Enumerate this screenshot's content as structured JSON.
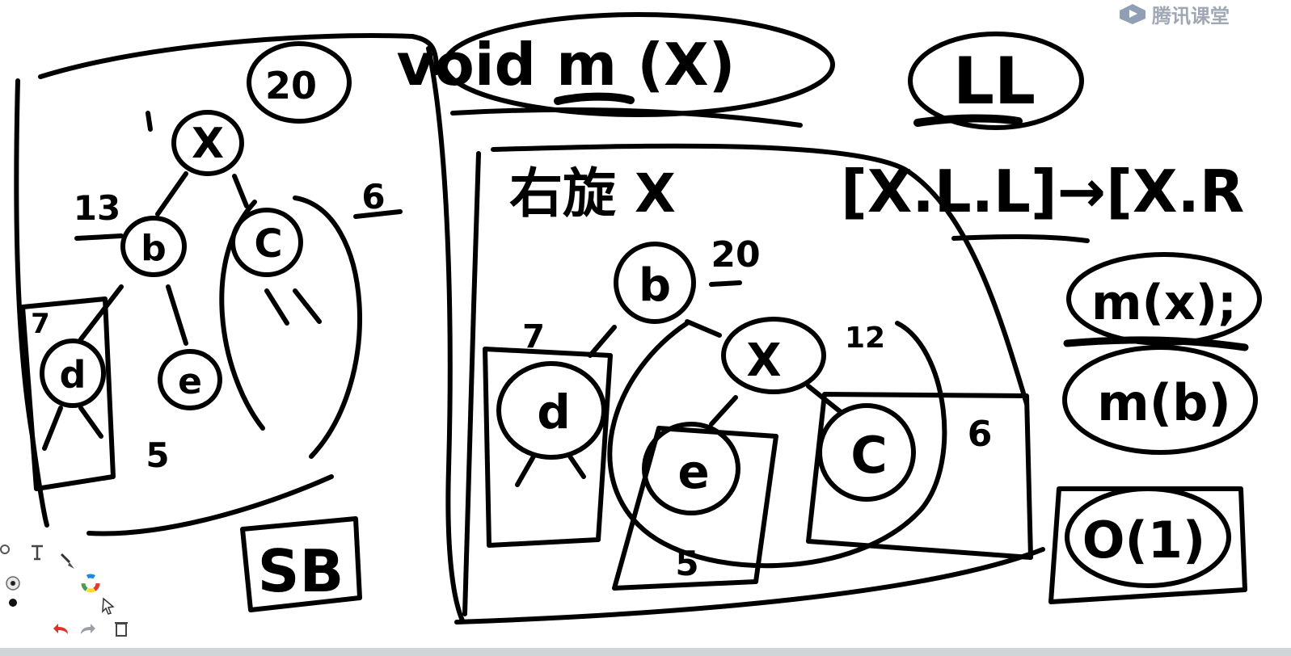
{
  "watermark": {
    "brand_text": "腾讯课堂",
    "logo_icon": "play-cube-icon",
    "color": "#8f9aa7"
  },
  "whiteboard": {
    "ink_color": "#000000",
    "background": "#ffffff",
    "labels": {
      "void_call": "void m (X)",
      "ll_case": "LL",
      "rotation_title": "右旋 X",
      "rotation_bracket": "[X.L.L]→[X.R",
      "calls": [
        "m(x);",
        "m(b)",
        "O(1)"
      ],
      "sb": "SB",
      "left_tree": {
        "root": "X",
        "root_size": "20",
        "left": "b",
        "left_size": "13",
        "right": "C",
        "right_size": "6",
        "left_left": "d",
        "left_left_size": "7",
        "left_right": "e",
        "left_right_size": "5"
      },
      "right_tree": {
        "root": "b",
        "root_size": "20",
        "left": "d",
        "left_size": "7",
        "right": "X",
        "right_size": "12",
        "right_left": "e",
        "right_left_size": "5",
        "right_right": "C",
        "right_right_size": "6"
      }
    }
  },
  "toolbar": {
    "tools": [
      {
        "name": "settings-icon"
      },
      {
        "name": "text-tool-icon"
      },
      {
        "name": "brush-icon"
      },
      {
        "name": "pen-size-icon"
      },
      {
        "name": "color-wheel-icon"
      },
      {
        "name": "dot-icon"
      },
      {
        "name": "pointer-icon"
      },
      {
        "name": "undo-icon"
      },
      {
        "name": "redo-icon"
      },
      {
        "name": "delete-icon"
      }
    ],
    "undo_color": "#d9342b",
    "redo_color": "#9aa0a6"
  }
}
